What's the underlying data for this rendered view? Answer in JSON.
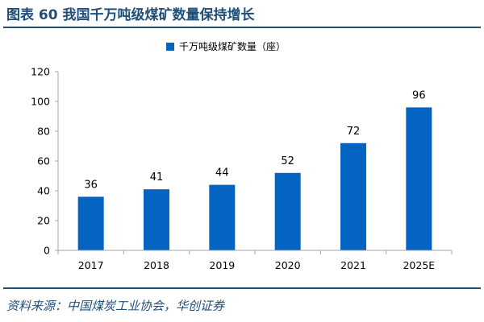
{
  "header": {
    "title": "图表 60  我国千万吨级煤矿数量保持增长"
  },
  "footer": {
    "source": "资料来源：中国煤炭工业协会，华创证券"
  },
  "colors": {
    "bar": "#0563c1",
    "title": "#1f4e79",
    "axis": "#a6a6a6",
    "text": "#000000"
  },
  "chart_data": {
    "type": "bar",
    "categories": [
      "2017",
      "2018",
      "2019",
      "2020",
      "2021",
      "2025E"
    ],
    "series": [
      {
        "name": "千万吨级煤矿数量（座）",
        "values": [
          36,
          41,
          44,
          52,
          72,
          96
        ]
      }
    ],
    "data_labels": [
      "36",
      "41",
      "44",
      "52",
      "72",
      "96"
    ],
    "y_ticks": [
      "0",
      "20",
      "40",
      "60",
      "80",
      "100",
      "120"
    ],
    "ylim": [
      0,
      120
    ],
    "grid": false,
    "legend_position": "top-center"
  }
}
